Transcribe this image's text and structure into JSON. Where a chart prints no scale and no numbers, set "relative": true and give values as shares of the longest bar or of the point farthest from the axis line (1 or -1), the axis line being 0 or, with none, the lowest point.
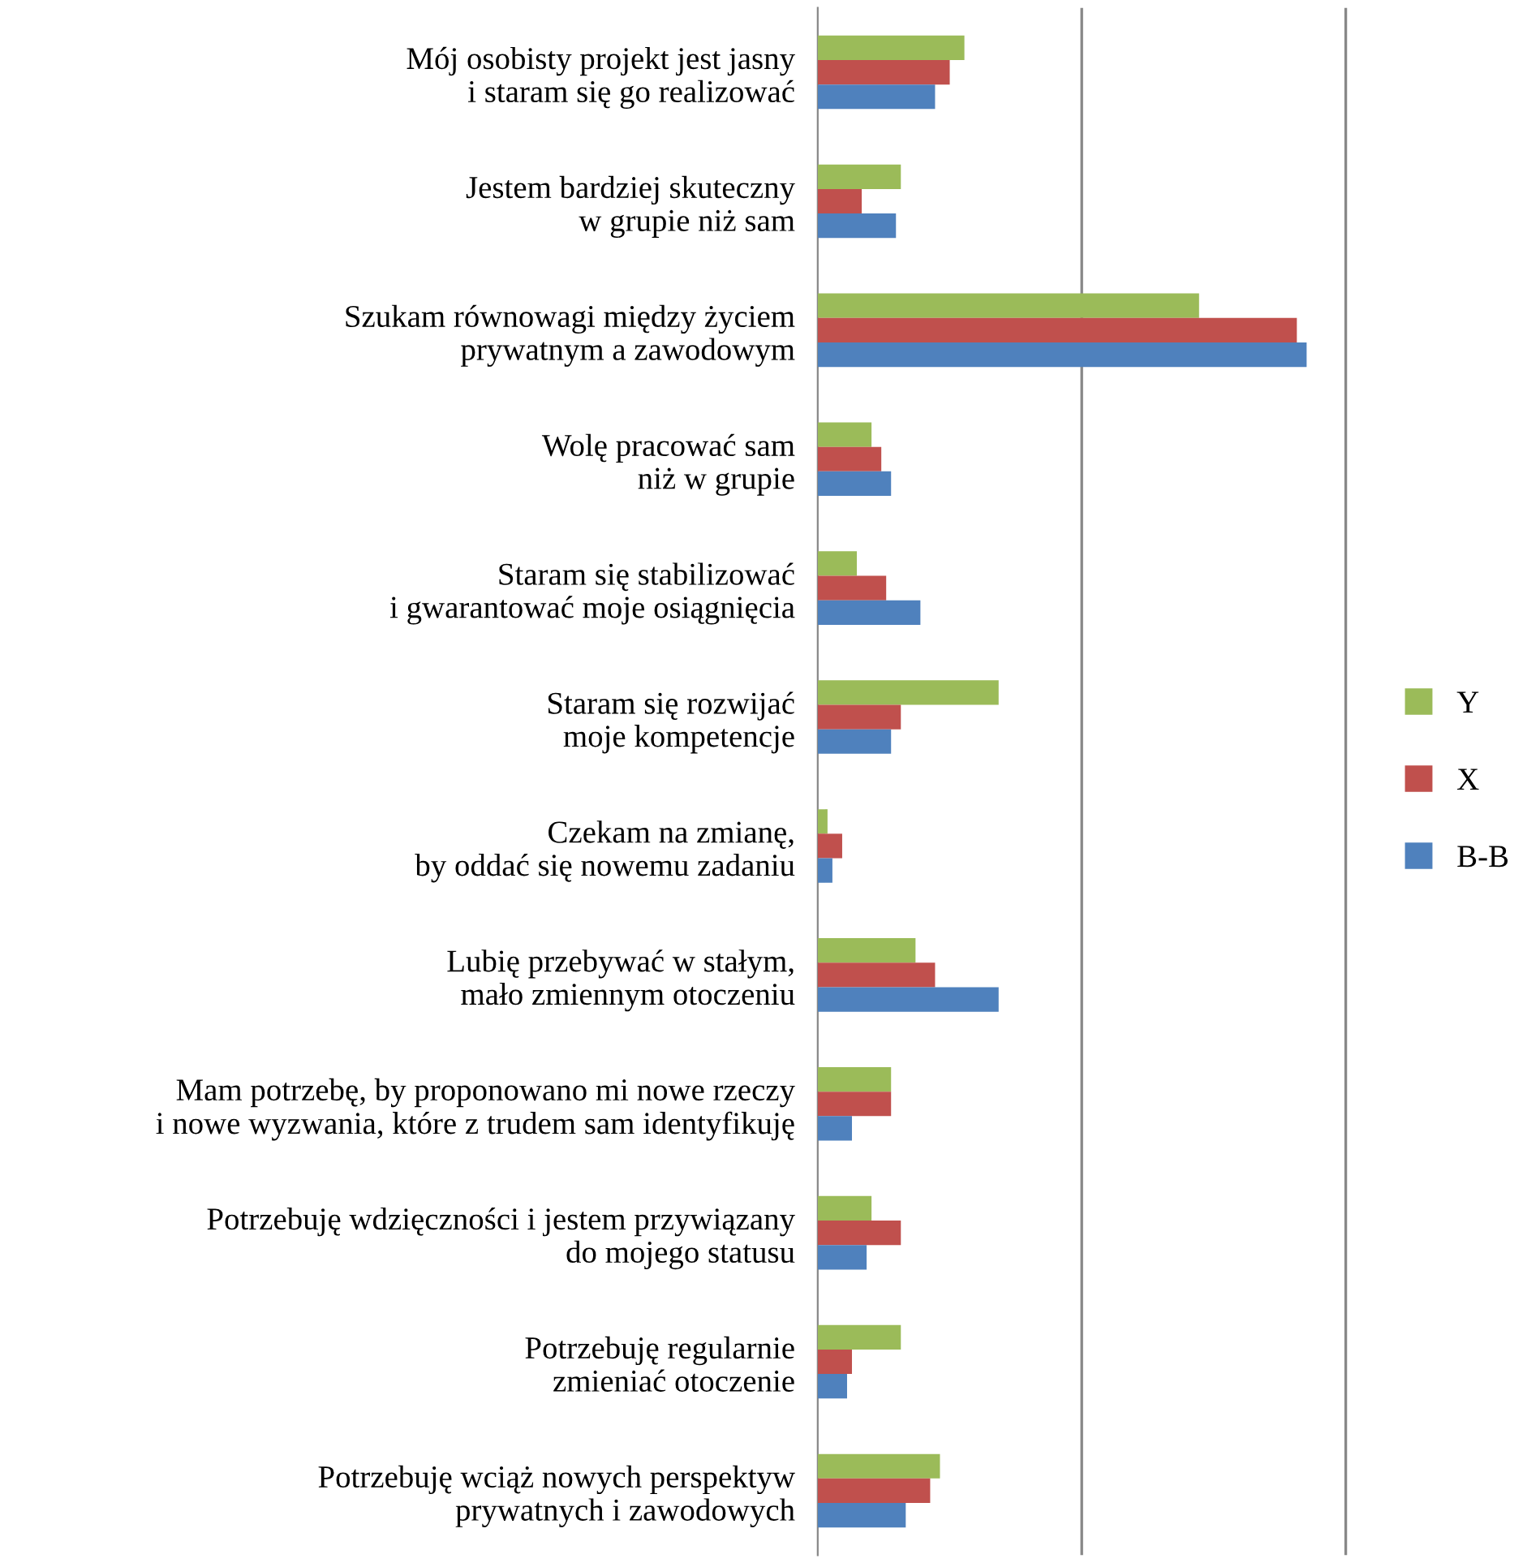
{
  "chart_data": {
    "type": "bar",
    "orientation": "horizontal",
    "relative": true,
    "legend": "right",
    "ref_lines": [
      {
        "axis": "x",
        "value": 0.54,
        "color": "#888888"
      },
      {
        "axis": "x",
        "value": 1.08,
        "color": "#888888"
      }
    ],
    "categories": [
      "Mój osobisty projekt jest jasny\ni staram się go realizować",
      "Jestem bardziej skuteczny\nw grupie niż sam",
      "Szukam równowagi między życiem\nprywatnym a zawodowym",
      "Wolę pracować sam\nniż w grupie",
      "Staram się stabilizować\ni gwarantować moje osiągnięcia",
      "Staram się rozwijać\nmoje kompetencje",
      "Czekam na zmianę,\nby oddać się nowemu zadaniu",
      "Lubię przebywać w stałym,\nmało zmiennym otoczeniu",
      "Mam potrzebę, by proponowano mi nowe rzeczy\ni nowe wyzwania, które z trudem sam identyfikuję",
      "Potrzebuję wdzięczności i jestem przywiązany\ndo mojego statusu",
      "Potrzebuję regularnie\nzmieniać otoczenie",
      "Potrzebuję wciąż nowych perspektyw\nprywatnych i zawodowych"
    ],
    "series": [
      {
        "name": "Y",
        "color": "#9bbb59",
        "values": [
          0.3,
          0.17,
          0.78,
          0.11,
          0.08,
          0.37,
          0.02,
          0.2,
          0.15,
          0.11,
          0.17,
          0.25
        ]
      },
      {
        "name": "X",
        "color": "#c0504d",
        "values": [
          0.27,
          0.09,
          0.98,
          0.13,
          0.14,
          0.17,
          0.05,
          0.24,
          0.15,
          0.17,
          0.07,
          0.23
        ]
      },
      {
        "name": "B-B",
        "color": "#4f81bd",
        "values": [
          0.24,
          0.16,
          1,
          0.15,
          0.21,
          0.15,
          0.03,
          0.37,
          0.07,
          0.1,
          0.06,
          0.18
        ]
      }
    ]
  }
}
